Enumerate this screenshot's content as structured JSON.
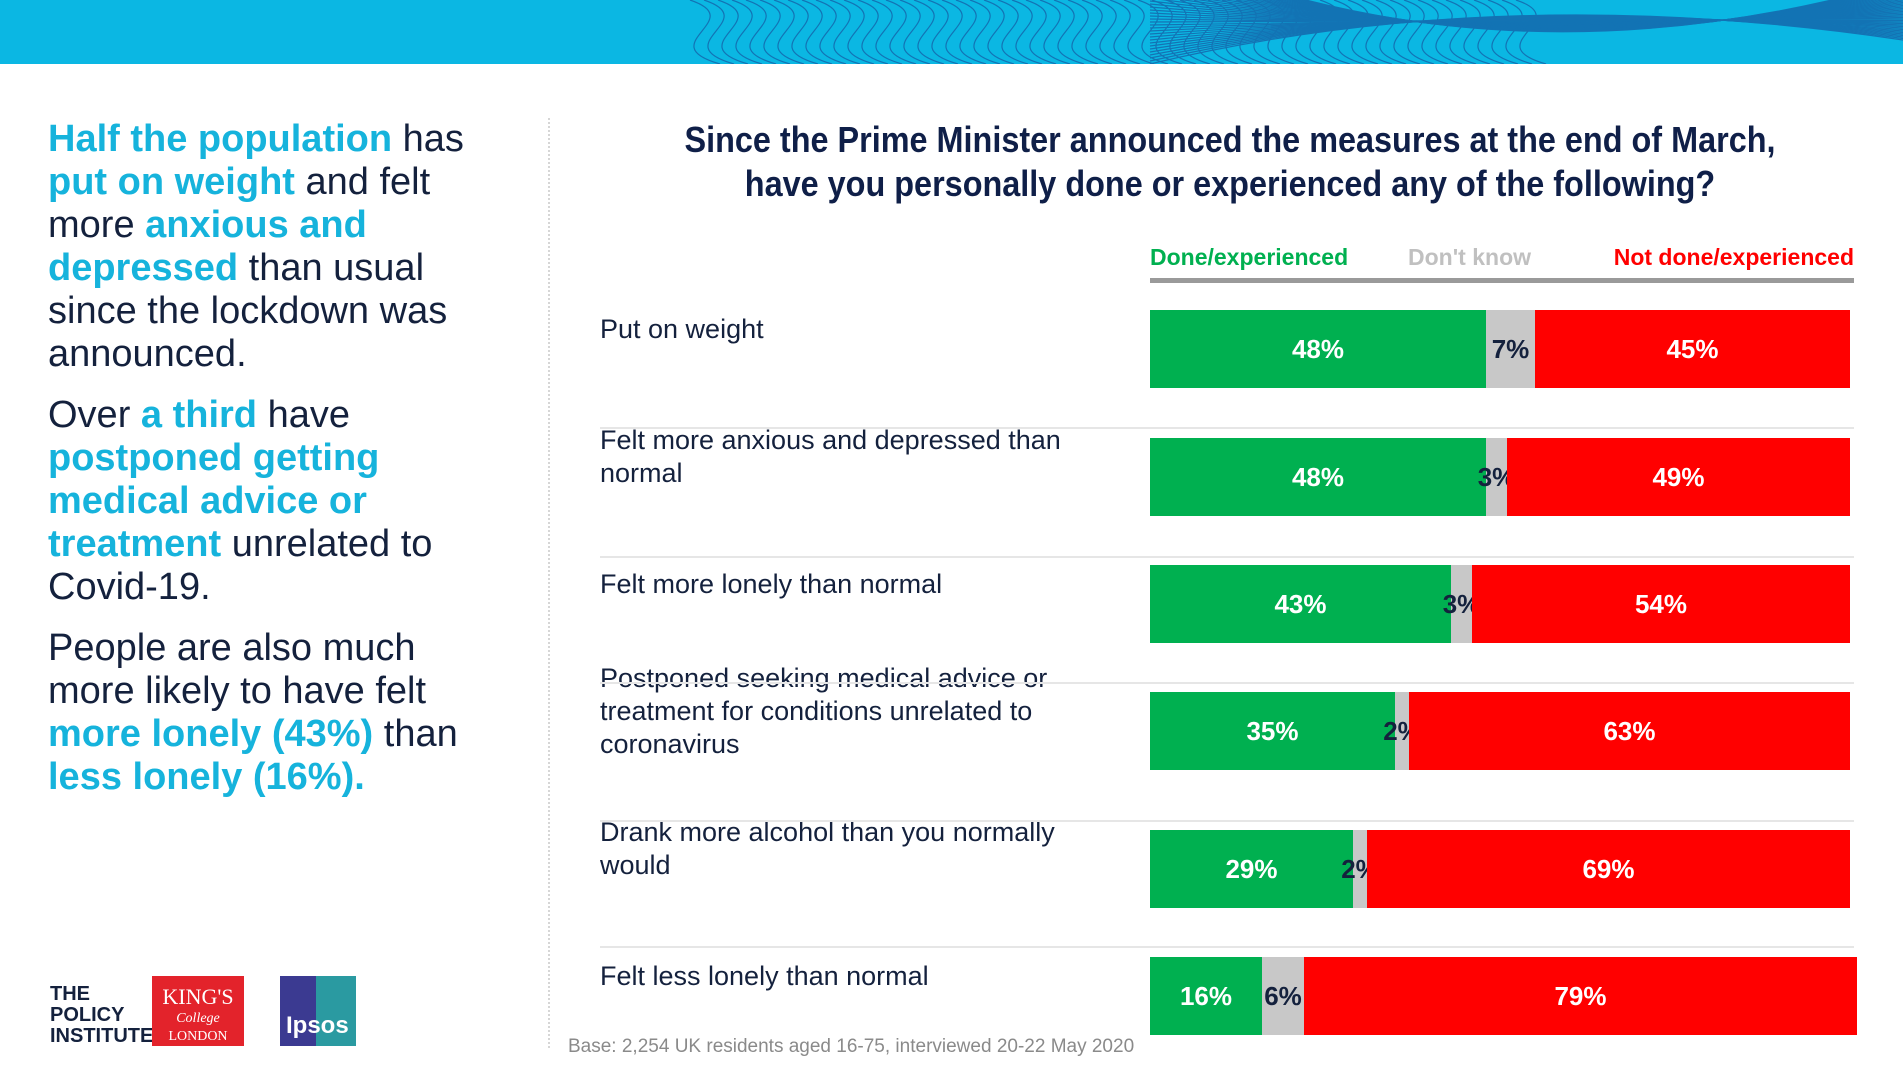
{
  "colors": {
    "banner": "#0bb7e3",
    "highlight": "#16b3dc",
    "text": "#14213d",
    "done": "#00b050",
    "dont_know": "#c8c8c8",
    "not_done": "#ff0000"
  },
  "left_panel": {
    "p1": {
      "h1": "Half the population",
      "t1": " has ",
      "h2": "put on weight",
      "t2": " and felt more ",
      "h3": "anxious and depressed",
      "t3": " than usual since the lockdown was announced."
    },
    "p2": {
      "t1": "Over ",
      "h1": "a third",
      "t2": " have ",
      "h2": "postponed getting medical advice or treatment",
      "t3": " unrelated to Covid-19."
    },
    "p3": {
      "t1": "People are also much more likely to have felt ",
      "h1": "more lonely (43%)",
      "t2": " than ",
      "h2": "less lonely (16%)."
    }
  },
  "logos": {
    "tpi_line1": "THE",
    "tpi_line2": "POLICY",
    "tpi_line3": "INSTITUTE",
    "kcl_line1": "KING'S",
    "kcl_line2": "College",
    "kcl_line3": "LONDON",
    "ipsos": "Ipsos"
  },
  "base_note": "Base: 2,254 UK residents aged 16-75, interviewed 20-22 May 2020",
  "chart_data": {
    "type": "bar",
    "orientation": "horizontal",
    "stacked": true,
    "title_line1": "Since the Prime Minister announced the measures at the end of March,",
    "title_line2": "have you personally done or experienced any of the following?",
    "legend_position": "top-right",
    "categories": [
      "Put on weight",
      "Felt more anxious and depressed than normal",
      "Felt more lonely than normal",
      "Postponed seeking medical advice or treatment for conditions unrelated to coronavirus",
      "Drank more alcohol than you normally would",
      "Felt less lonely than normal"
    ],
    "series": [
      {
        "name": "Done/experienced",
        "color": "#00b050",
        "label_color": "#ffffff",
        "values": [
          48,
          48,
          43,
          35,
          29,
          16
        ]
      },
      {
        "name": "Don't know",
        "color": "#c8c8c8",
        "label_color": "#14213d",
        "values": [
          7,
          3,
          3,
          2,
          2,
          6
        ]
      },
      {
        "name": "Not done/experienced",
        "color": "#ff0000",
        "label_color": "#ffffff",
        "values": [
          45,
          49,
          54,
          63,
          69,
          79
        ]
      }
    ],
    "value_suffix": "%"
  }
}
